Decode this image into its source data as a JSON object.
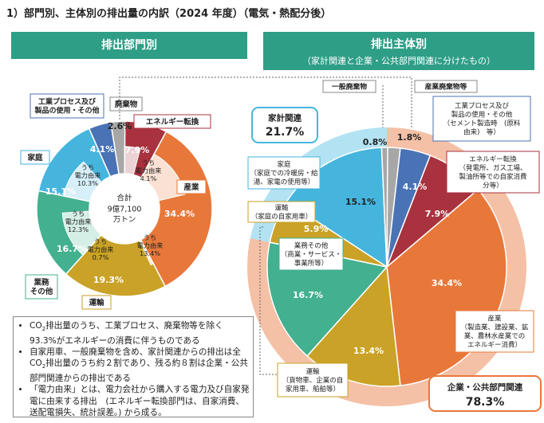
{
  "title": "1）部門別、主体別の排出量の内訳（2024 年度）（電気・熱配分後）",
  "header_left": "排出部門別",
  "header_right": {
    "main": "排出主体別",
    "sub": "（家計関連と企業・公共部門関連に分けたもの）"
  },
  "colors": {
    "energy": "#a8323e",
    "industry": "#e8783a",
    "transport": "#c9a227",
    "business": "#43b08f",
    "household": "#45b5de",
    "waste": "#a7a7a7",
    "process": "#4a73b5",
    "elec_light": "#f7d8c6",
    "household_outer": "#b3e3f3",
    "corp_outer": "#f4c0a6"
  },
  "center_label": {
    "line1": "合計",
    "line2": "9億7,100",
    "line3": "万トン"
  },
  "left_labels": {
    "energy": "エネルギー転換",
    "industry": "産業",
    "transport": "運輸",
    "business": "業務\nその他",
    "household": "家庭",
    "process": "工業プロセス及び\n製品の使用・その他",
    "waste": "廃棄物"
  },
  "inner_labels": {
    "energy": "うち\n電力由来\n4.1%",
    "industry": "うち\n電力由来\n13.4%",
    "transport": "うち\n電力由来\n0.7%",
    "business": "うち\n電力由来\n12.3%",
    "household": "うち\n電力由来\n10.3%"
  },
  "right_labels": {
    "household_group": {
      "name": "家計関連",
      "value": "21.7%"
    },
    "corp_group": {
      "name": "企業・公共部門関連",
      "value": "78.3%"
    },
    "waste_general": "一般廃棄物",
    "waste_industrial": "産業廃棄物等",
    "household": {
      "name": "家庭",
      "desc": "（家庭での冷暖房・給\n湯、家電の使用等）"
    },
    "transport_household": {
      "name": "運輸",
      "desc": "（家庭の自家用車）"
    },
    "business": {
      "name": "業務その他",
      "desc": "（商業・サービス・\n事業所等）"
    },
    "transport_corp": {
      "name": "運輸",
      "desc": "（貨物車、企業の自\n家用車、船舶等）"
    },
    "industry": {
      "name": "産業",
      "desc": "（製造業、建設業、鉱\n業、農林水産業での\nエネルギー消費）"
    },
    "energy": {
      "name": "エネルギー転換",
      "desc": "（発電所、ガス工場、\n製油所等での自家消費\n分等）"
    },
    "process": {
      "name": "工業プロセス及び\n製品の使用・その他",
      "desc": "（セメント製造時　(原料\n由来)　等）"
    }
  },
  "notes": [
    [
      "CO",
      "2",
      "排出量のうち、工業プロセス、廃棄物等を除く93.3%がエネルギーの消費に伴うものである"
    ],
    [
      "自家用車、一般廃棄物を含め、家計関連からの排出は全CO",
      "2",
      "排出量のうち約２割であり、残る約８割は企業・公共部門関連からの排出である"
    ],
    [
      "「電力由来」とは、電力会社から購入する電力及び自家発電に由来する排出　(エネルギー転換部門は、自家消費、送配電損失、統計誤差。) から成る。",
      "",
      ""
    ]
  ],
  "chart_data": [
    {
      "type": "pie",
      "title": "排出部門別",
      "series": [
        {
          "name": "エネルギー転換",
          "value": 7.9,
          "label": "7.9%",
          "elec": 4.1
        },
        {
          "name": "産業",
          "value": 34.4,
          "label": "34.4%",
          "elec": 13.4
        },
        {
          "name": "運輸",
          "value": 19.3,
          "label": "19.3%",
          "elec": 0.7
        },
        {
          "name": "業務その他",
          "value": 16.7,
          "label": "16.7%",
          "elec": 12.3
        },
        {
          "name": "家庭",
          "value": 15.1,
          "label": "15.1%",
          "elec": 10.3
        },
        {
          "name": "工業プロセス及び製品の使用・その他",
          "value": 4.1,
          "label": "4.1%"
        },
        {
          "name": "廃棄物",
          "value": 2.6,
          "label": "2.6%"
        }
      ],
      "total": "9億7,100万トン"
    },
    {
      "type": "pie",
      "title": "排出主体別",
      "series": [
        {
          "name": "産業廃棄物等",
          "value": 1.8,
          "label": "1.8%",
          "group": "corp"
        },
        {
          "name": "工業プロセス及び製品の使用・その他",
          "value": 4.1,
          "label": "4.1%",
          "group": "corp"
        },
        {
          "name": "エネルギー転換",
          "value": 7.9,
          "label": "7.9%",
          "group": "corp"
        },
        {
          "name": "産業",
          "value": 34.4,
          "label": "34.4%",
          "group": "corp"
        },
        {
          "name": "運輸（貨物車、企業の自家用車、船舶等）",
          "value": 13.4,
          "label": "13.4%",
          "group": "corp"
        },
        {
          "name": "業務その他",
          "value": 16.7,
          "label": "16.7%",
          "group": "corp"
        },
        {
          "name": "運輸（家庭の自家用車）",
          "value": 5.9,
          "label": "5.9%",
          "group": "household"
        },
        {
          "name": "家庭",
          "value": 15.1,
          "label": "15.1%",
          "group": "household"
        },
        {
          "name": "一般廃棄物",
          "value": 0.8,
          "label": "0.8%",
          "group": "household"
        }
      ],
      "groups": [
        {
          "name": "家計関連",
          "value": 21.7,
          "label": "21.7%"
        },
        {
          "name": "企業・公共部門関連",
          "value": 78.3,
          "label": "78.3%"
        }
      ]
    }
  ]
}
